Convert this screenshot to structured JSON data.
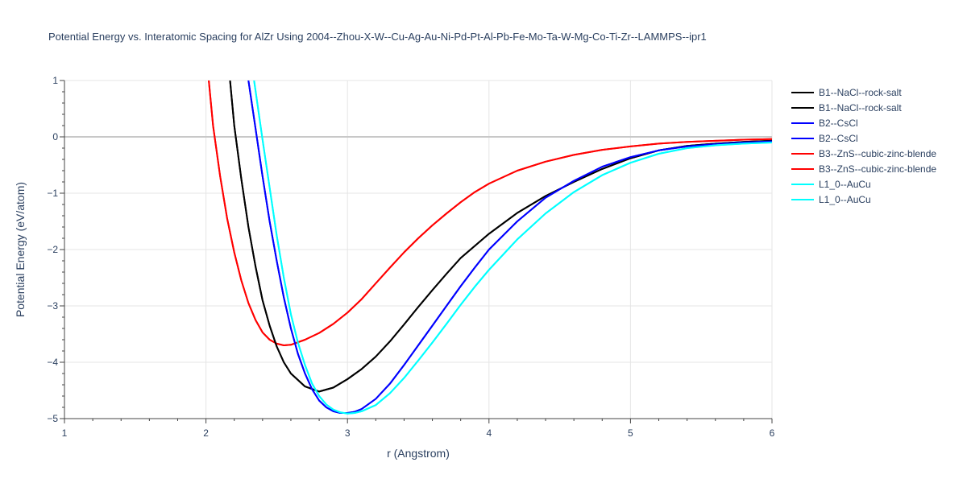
{
  "chart_data": {
    "type": "line",
    "title": "Potential Energy vs. Interatomic Spacing for AlZr Using 2004--Zhou-X-W--Cu-Ag-Au-Ni-Pd-Pt-Al-Pb-Fe-Mo-Ta-W-Mg-Co-Ti-Zr--LAMMPS--ipr1",
    "xlabel": "r (Angstrom)",
    "ylabel": "Potential Energy (eV/atom)",
    "xlim": [
      1,
      6
    ],
    "ylim": [
      -5,
      1
    ],
    "x_ticks": [
      "1",
      "2",
      "3",
      "4",
      "5",
      "6"
    ],
    "y_ticks": [
      "1",
      "0",
      "−1",
      "−2",
      "−3",
      "−4",
      "−5"
    ],
    "grid": true,
    "legend_position": "right",
    "series": [
      {
        "name": "B1--NaCl--rock-salt",
        "color": "#000000",
        "x": [
          2.17,
          2.2,
          2.25,
          2.3,
          2.35,
          2.4,
          2.45,
          2.5,
          2.55,
          2.6,
          2.7,
          2.8,
          2.9,
          3.0,
          3.1,
          3.2,
          3.3,
          3.4,
          3.5,
          3.6,
          3.7,
          3.8,
          4.0,
          4.2,
          4.4,
          4.6,
          4.8,
          5.0,
          5.2,
          5.4,
          5.6,
          5.8,
          6.0
        ],
        "y": [
          1.0,
          0.2,
          -0.75,
          -1.6,
          -2.3,
          -2.9,
          -3.35,
          -3.72,
          -4.0,
          -4.2,
          -4.43,
          -4.52,
          -4.45,
          -4.3,
          -4.12,
          -3.9,
          -3.63,
          -3.33,
          -3.02,
          -2.72,
          -2.43,
          -2.15,
          -1.72,
          -1.35,
          -1.05,
          -0.8,
          -0.57,
          -0.38,
          -0.24,
          -0.16,
          -0.12,
          -0.09,
          -0.07
        ]
      },
      {
        "name": "B1--NaCl--rock-salt",
        "color": "#000000",
        "x": [
          2.17,
          2.2,
          2.25,
          2.3,
          2.35,
          2.4,
          2.45,
          2.5,
          2.55,
          2.6,
          2.7,
          2.8,
          2.9,
          3.0,
          3.1,
          3.2,
          3.3,
          3.4,
          3.5,
          3.6,
          3.7,
          3.8,
          4.0,
          4.2,
          4.4,
          4.6,
          4.8,
          5.0,
          5.2,
          5.4,
          5.6,
          5.8,
          6.0
        ],
        "y": [
          1.0,
          0.2,
          -0.75,
          -1.6,
          -2.3,
          -2.9,
          -3.35,
          -3.72,
          -4.0,
          -4.2,
          -4.43,
          -4.52,
          -4.45,
          -4.3,
          -4.12,
          -3.9,
          -3.63,
          -3.33,
          -3.02,
          -2.72,
          -2.43,
          -2.15,
          -1.72,
          -1.35,
          -1.05,
          -0.8,
          -0.57,
          -0.38,
          -0.24,
          -0.16,
          -0.12,
          -0.09,
          -0.07
        ]
      },
      {
        "name": "B2--CsCl",
        "color": "#0000ff",
        "x": [
          2.3,
          2.35,
          2.4,
          2.45,
          2.5,
          2.55,
          2.6,
          2.65,
          2.7,
          2.75,
          2.8,
          2.85,
          2.9,
          2.95,
          3.0,
          3.05,
          3.1,
          3.2,
          3.3,
          3.4,
          3.5,
          3.6,
          3.7,
          3.8,
          3.9,
          4.0,
          4.2,
          4.4,
          4.6,
          4.8,
          5.0,
          5.2,
          5.4,
          5.6,
          5.8,
          6.0
        ],
        "y": [
          1.0,
          0.15,
          -0.7,
          -1.5,
          -2.2,
          -2.85,
          -3.4,
          -3.85,
          -4.2,
          -4.48,
          -4.68,
          -4.8,
          -4.87,
          -4.9,
          -4.9,
          -4.88,
          -4.83,
          -4.65,
          -4.38,
          -4.05,
          -3.7,
          -3.35,
          -3.0,
          -2.65,
          -2.32,
          -2.0,
          -1.5,
          -1.08,
          -0.78,
          -0.53,
          -0.36,
          -0.24,
          -0.17,
          -0.13,
          -0.1,
          -0.08
        ]
      },
      {
        "name": "B2--CsCl",
        "color": "#0000ff",
        "x": [
          2.3,
          2.35,
          2.4,
          2.45,
          2.5,
          2.55,
          2.6,
          2.65,
          2.7,
          2.75,
          2.8,
          2.85,
          2.9,
          2.95,
          3.0,
          3.05,
          3.1,
          3.2,
          3.3,
          3.4,
          3.5,
          3.6,
          3.7,
          3.8,
          3.9,
          4.0,
          4.2,
          4.4,
          4.6,
          4.8,
          5.0,
          5.2,
          5.4,
          5.6,
          5.8,
          6.0
        ],
        "y": [
          1.0,
          0.15,
          -0.7,
          -1.5,
          -2.2,
          -2.85,
          -3.4,
          -3.85,
          -4.2,
          -4.48,
          -4.68,
          -4.8,
          -4.87,
          -4.9,
          -4.9,
          -4.88,
          -4.83,
          -4.65,
          -4.38,
          -4.05,
          -3.7,
          -3.35,
          -3.0,
          -2.65,
          -2.32,
          -2.0,
          -1.5,
          -1.08,
          -0.78,
          -0.53,
          -0.36,
          -0.24,
          -0.17,
          -0.13,
          -0.1,
          -0.08
        ]
      },
      {
        "name": "B3--ZnS--cubic-zinc-blende",
        "color": "#ff0000",
        "x": [
          2.02,
          2.05,
          2.1,
          2.15,
          2.2,
          2.25,
          2.3,
          2.35,
          2.4,
          2.45,
          2.5,
          2.55,
          2.6,
          2.7,
          2.8,
          2.9,
          3.0,
          3.1,
          3.2,
          3.3,
          3.4,
          3.5,
          3.6,
          3.7,
          3.8,
          3.9,
          4.0,
          4.2,
          4.4,
          4.6,
          4.8,
          5.0,
          5.2,
          5.4,
          5.6,
          5.8,
          6.0
        ],
        "y": [
          1.0,
          0.2,
          -0.7,
          -1.45,
          -2.05,
          -2.55,
          -2.95,
          -3.25,
          -3.47,
          -3.6,
          -3.67,
          -3.7,
          -3.69,
          -3.6,
          -3.48,
          -3.32,
          -3.12,
          -2.88,
          -2.6,
          -2.32,
          -2.05,
          -1.8,
          -1.57,
          -1.36,
          -1.16,
          -0.98,
          -0.83,
          -0.6,
          -0.44,
          -0.32,
          -0.23,
          -0.17,
          -0.12,
          -0.09,
          -0.07,
          -0.05,
          -0.04
        ]
      },
      {
        "name": "B3--ZnS--cubic-zinc-blende",
        "color": "#ff0000",
        "x": [
          2.02,
          2.05,
          2.1,
          2.15,
          2.2,
          2.25,
          2.3,
          2.35,
          2.4,
          2.45,
          2.5,
          2.55,
          2.6,
          2.7,
          2.8,
          2.9,
          3.0,
          3.1,
          3.2,
          3.3,
          3.4,
          3.5,
          3.6,
          3.7,
          3.8,
          3.9,
          4.0,
          4.2,
          4.4,
          4.6,
          4.8,
          5.0,
          5.2,
          5.4,
          5.6,
          5.8,
          6.0
        ],
        "y": [
          1.0,
          0.2,
          -0.7,
          -1.45,
          -2.05,
          -2.55,
          -2.95,
          -3.25,
          -3.47,
          -3.6,
          -3.67,
          -3.7,
          -3.69,
          -3.6,
          -3.48,
          -3.32,
          -3.12,
          -2.88,
          -2.6,
          -2.32,
          -2.05,
          -1.8,
          -1.57,
          -1.36,
          -1.16,
          -0.98,
          -0.83,
          -0.6,
          -0.44,
          -0.32,
          -0.23,
          -0.17,
          -0.12,
          -0.09,
          -0.07,
          -0.05,
          -0.04
        ]
      },
      {
        "name": "L1_0--AuCu",
        "color": "#00ffff",
        "x": [
          2.34,
          2.4,
          2.45,
          2.5,
          2.55,
          2.6,
          2.65,
          2.7,
          2.75,
          2.8,
          2.85,
          2.9,
          2.95,
          3.0,
          3.05,
          3.1,
          3.2,
          3.3,
          3.4,
          3.5,
          3.6,
          3.7,
          3.8,
          3.9,
          4.0,
          4.2,
          4.4,
          4.6,
          4.8,
          5.0,
          5.2,
          5.4,
          5.6,
          5.8,
          6.0
        ],
        "y": [
          1.0,
          -0.05,
          -0.9,
          -1.75,
          -2.5,
          -3.15,
          -3.65,
          -4.05,
          -4.38,
          -4.6,
          -4.75,
          -4.84,
          -4.89,
          -4.91,
          -4.9,
          -4.87,
          -4.76,
          -4.55,
          -4.28,
          -3.97,
          -3.65,
          -3.32,
          -2.98,
          -2.66,
          -2.36,
          -1.82,
          -1.36,
          -0.98,
          -0.68,
          -0.46,
          -0.3,
          -0.2,
          -0.15,
          -0.12,
          -0.1
        ]
      },
      {
        "name": "L1_0--AuCu",
        "color": "#00ffff",
        "x": [
          2.34,
          2.4,
          2.45,
          2.5,
          2.55,
          2.6,
          2.65,
          2.7,
          2.75,
          2.8,
          2.85,
          2.9,
          2.95,
          3.0,
          3.05,
          3.1,
          3.2,
          3.3,
          3.4,
          3.5,
          3.6,
          3.7,
          3.8,
          3.9,
          4.0,
          4.2,
          4.4,
          4.6,
          4.8,
          5.0,
          5.2,
          5.4,
          5.6,
          5.8,
          6.0
        ],
        "y": [
          1.0,
          -0.05,
          -0.9,
          -1.75,
          -2.5,
          -3.15,
          -3.65,
          -4.05,
          -4.38,
          -4.6,
          -4.75,
          -4.84,
          -4.89,
          -4.91,
          -4.9,
          -4.87,
          -4.76,
          -4.55,
          -4.28,
          -3.97,
          -3.65,
          -3.32,
          -2.98,
          -2.66,
          -2.36,
          -1.82,
          -1.36,
          -0.98,
          -0.68,
          -0.46,
          -0.3,
          -0.2,
          -0.15,
          -0.12,
          -0.1
        ]
      }
    ]
  }
}
